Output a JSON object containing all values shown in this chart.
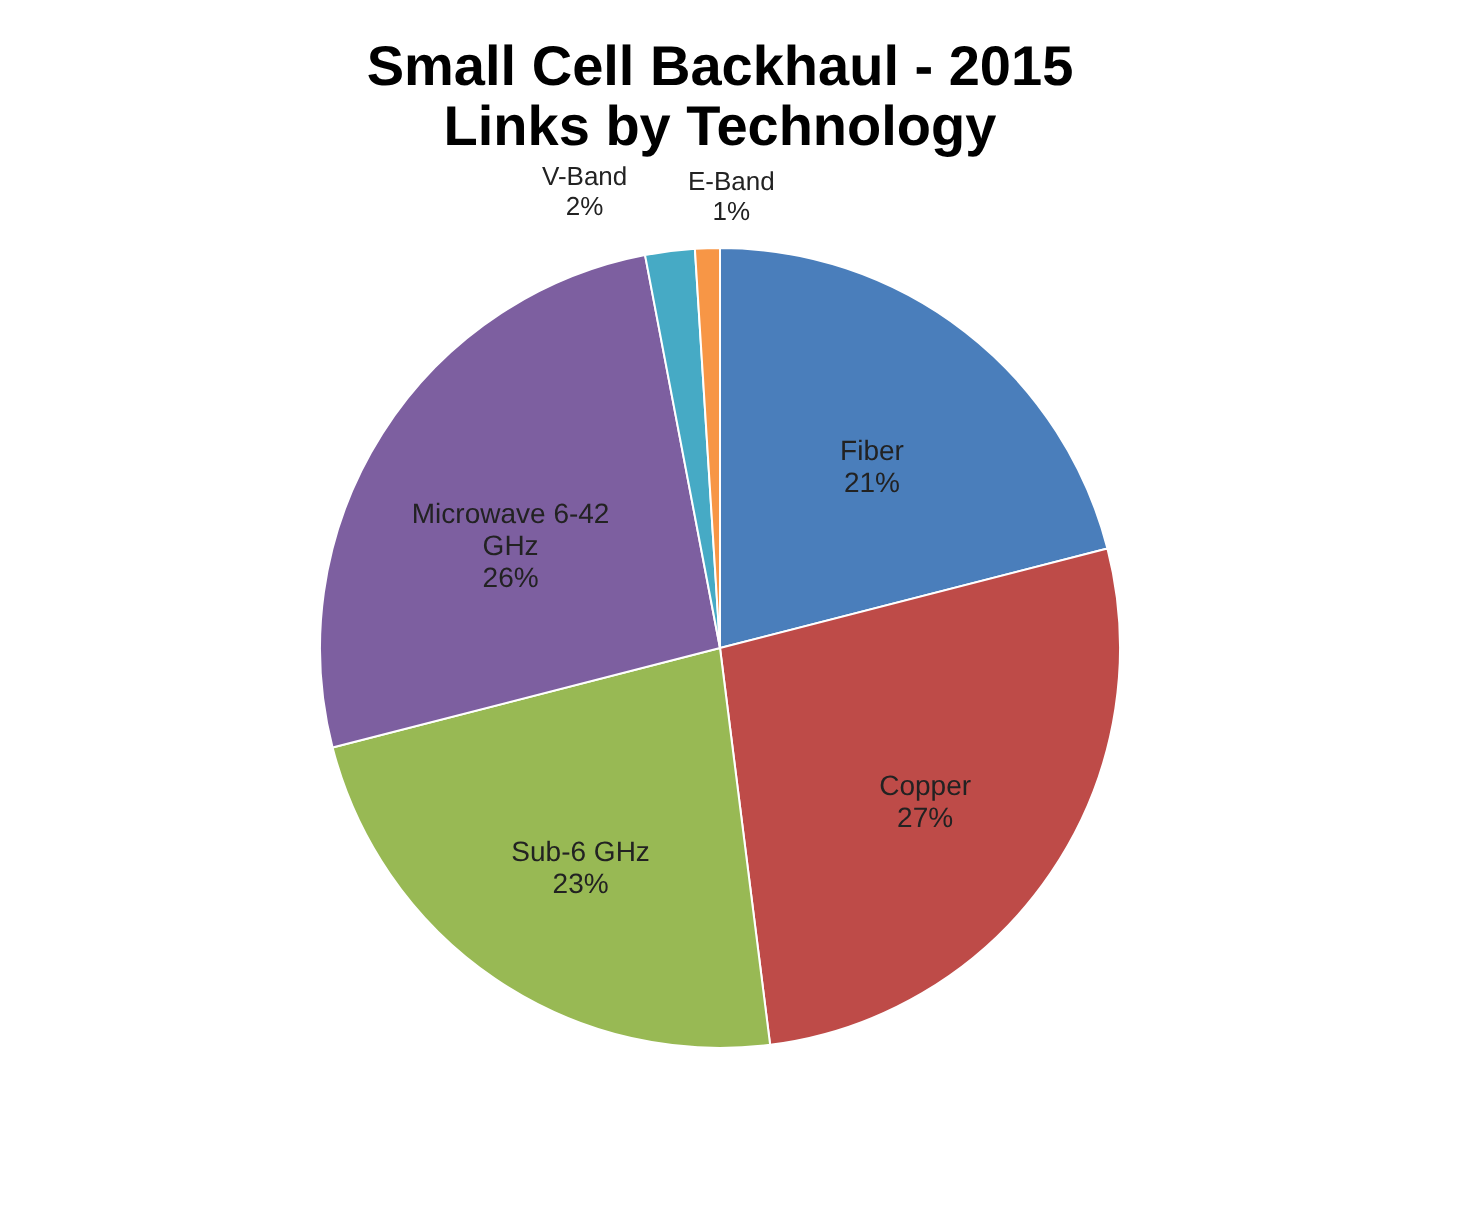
{
  "chart_data": {
    "type": "pie",
    "title": [
      "Small Cell Backhaul - 2015",
      "Links by Technology"
    ],
    "categories": [
      "Fiber",
      "Copper",
      "Sub-6 GHz",
      "Microwave 6-42 GHz",
      "V-Band",
      "E-Band"
    ],
    "values": [
      21,
      27,
      23,
      26,
      2,
      1
    ],
    "value_labels": [
      "21%",
      "27%",
      "23%",
      "26%",
      "2%",
      "1%"
    ],
    "colors": [
      "#4a7ebb",
      "#be4b48",
      "#98b954",
      "#7d5fa0",
      "#46aac5",
      "#f79646"
    ],
    "legend": false
  }
}
